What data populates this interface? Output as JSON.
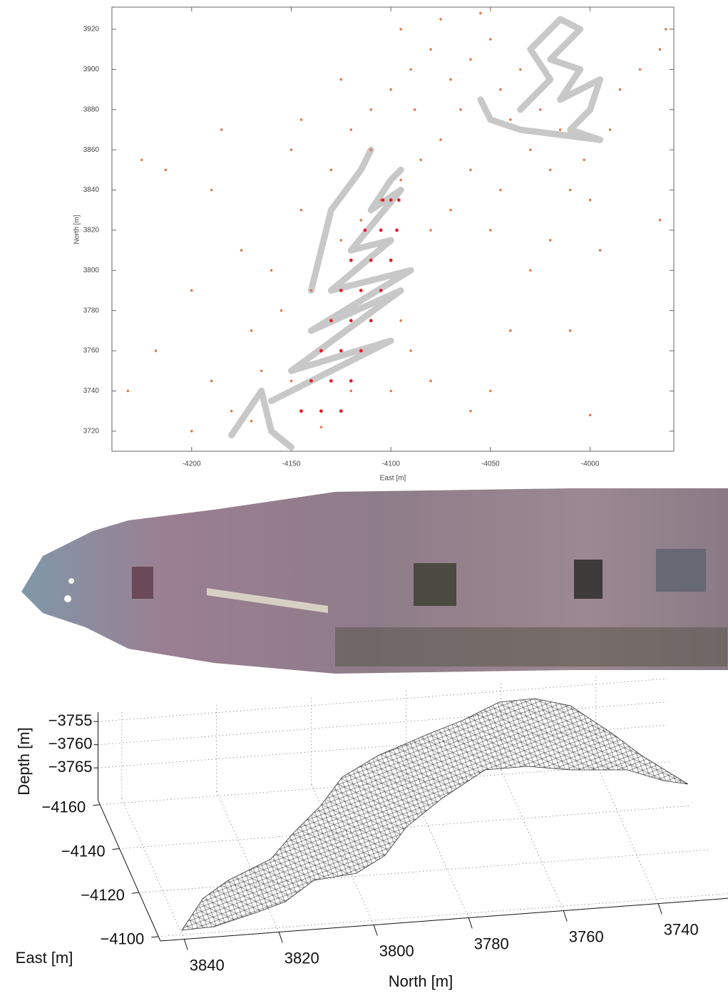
{
  "chart_data": [
    {
      "type": "scatter",
      "xlabel": "East [m]",
      "ylabel": "North [m]",
      "xlim": [
        -4240,
        -3958
      ],
      "ylim": [
        3710,
        3931
      ],
      "xticks": [
        -4200,
        -4150,
        -4100,
        -4050,
        -4000
      ],
      "yticks": [
        3720,
        3740,
        3760,
        3780,
        3800,
        3820,
        3840,
        3860,
        3880,
        3900,
        3920
      ],
      "series": [
        {
          "mode": "lines",
          "color": "#c8c8c8",
          "x": [
            -4160,
            -4100,
            -4150,
            -4095,
            -4140,
            -4090,
            -4130,
            -4100,
            -4120,
            -4095,
            -4110,
            -4100,
            -4095,
            null,
            -4035,
            -4020,
            -4030,
            -4015,
            -4005,
            -4020,
            -4005,
            -4015,
            -3995,
            -4000,
            -4010,
            -3995,
            -4035,
            -4050,
            -4055,
            null,
            -4180,
            -4165,
            -4160,
            -4150,
            null,
            -4140,
            -4130,
            -4115,
            -4110
          ],
          "y": [
            3735,
            3765,
            3750,
            3790,
            3770,
            3800,
            3790,
            3815,
            3810,
            3840,
            3830,
            3845,
            3850,
            null,
            3880,
            3895,
            3910,
            3925,
            3920,
            3905,
            3900,
            3885,
            3895,
            3880,
            3870,
            3865,
            3870,
            3875,
            3885,
            null,
            3718,
            3740,
            3720,
            3712,
            null,
            3790,
            3830,
            3850,
            3860
          ]
        },
        {
          "mode": "markers",
          "color": "#e07a4f",
          "x": [
            -4225,
            -4213,
            -4190,
            -4175,
            -4200,
            -4218,
            -4232,
            -4190,
            -4170,
            -4160,
            -4145,
            -4150,
            -4130,
            -4120,
            -4110,
            -4100,
            -4090,
            -4080,
            -4070,
            -4060,
            -4050,
            -4045,
            -4040,
            -4030,
            -4020,
            -4010,
            -4000,
            -3990,
            -3975,
            -3965,
            -3985,
            -4015,
            -4025,
            -4035,
            -4065,
            -4075,
            -4085,
            -4095,
            -4105,
            -4115,
            -4125,
            -4140,
            -4155,
            -4165,
            -4180,
            -4170,
            -4150,
            -4105,
            -4095,
            -4090,
            -4080,
            -4060,
            -4050,
            -4040,
            -4030,
            -4020,
            -4050,
            -4070,
            -4080,
            -4060,
            -4045,
            -4010,
            -4000,
            -3995,
            -3965,
            -4115,
            -4100,
            -4120,
            -4135,
            -4200,
            -4185,
            -4145,
            -4125,
            -4095,
            -4075,
            -4055,
            -3962,
            -4003,
            -4088,
            -4110
          ],
          "y": [
            3855,
            3850,
            3840,
            3810,
            3790,
            3760,
            3740,
            3745,
            3770,
            3800,
            3830,
            3860,
            3850,
            3870,
            3880,
            3890,
            3900,
            3910,
            3895,
            3905,
            3915,
            3890,
            3875,
            3860,
            3850,
            3840,
            3835,
            3870,
            3900,
            3910,
            3890,
            3870,
            3880,
            3900,
            3880,
            3865,
            3855,
            3845,
            3835,
            3825,
            3815,
            3790,
            3780,
            3750,
            3730,
            3725,
            3745,
            3790,
            3775,
            3760,
            3745,
            3730,
            3740,
            3770,
            3800,
            3815,
            3820,
            3830,
            3820,
            3850,
            3840,
            3770,
            3728,
            3810,
            3825,
            3760,
            3740,
            3740,
            3722,
            3720,
            3870,
            3875,
            3895,
            3920,
            3925,
            3928,
            3920,
            3855,
            3880,
            3860
          ]
        },
        {
          "mode": "markers",
          "color": "#e0202a",
          "x": [
            -4145,
            -4135,
            -4125,
            -4140,
            -4130,
            -4120,
            -4135,
            -4125,
            -4115,
            -4130,
            -4120,
            -4110,
            -4125,
            -4115,
            -4105,
            -4120,
            -4110,
            -4100,
            -4113,
            -4105,
            -4097,
            -4104,
            -4100,
            -4096
          ],
          "y": [
            3730,
            3730,
            3730,
            3745,
            3745,
            3745,
            3760,
            3760,
            3760,
            3775,
            3775,
            3775,
            3790,
            3790,
            3790,
            3805,
            3805,
            3805,
            3820,
            3820,
            3820,
            3835,
            3835,
            3835
          ]
        }
      ]
    },
    {
      "type": "surface3d",
      "xlabel": "North [m]",
      "ylabel": "East [m]",
      "zlabel": "Depth [m]",
      "xlim": [
        3725,
        3845
      ],
      "ylim": [
        -4162,
        -4098
      ],
      "zlim": [
        -3772,
        -3753
      ],
      "xticks": [
        3840,
        3820,
        3800,
        3780,
        3760,
        3740
      ],
      "yticks": [
        {
          "value": -4160,
          "label": "−4160"
        },
        {
          "value": -4140,
          "label": "−4140"
        },
        {
          "value": -4120,
          "label": "−4120"
        },
        {
          "value": -4100,
          "label": "−4100"
        }
      ],
      "zticks": [
        {
          "value": -3755,
          "label": "−3755"
        },
        {
          "value": -3760,
          "label": "−3760"
        },
        {
          "value": -3765,
          "label": "−3765"
        }
      ],
      "grid": true
    }
  ]
}
